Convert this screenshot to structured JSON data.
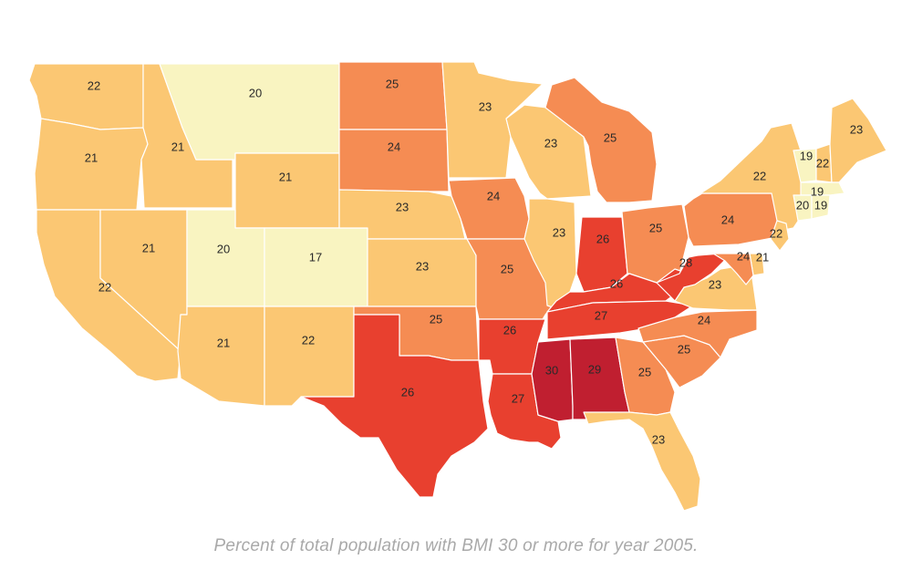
{
  "caption": "Percent of total population with BMI 30 or more for year 2005.",
  "colors": {
    "17": "#f9f4c1",
    "19": "#f9f4c1",
    "20": "#f9f4c1",
    "21": "#fbc773",
    "22": "#fbc773",
    "23": "#fbc773",
    "24": "#f58c53",
    "25": "#f58c53",
    "26": "#e8402f",
    "27": "#e8402f",
    "28": "#e8402f",
    "29": "#c01f30",
    "30": "#c01f30",
    "border": "#ffffff"
  },
  "states": [
    {
      "id": "WA",
      "value": 22
    },
    {
      "id": "OR",
      "value": 21
    },
    {
      "id": "CA",
      "value": 22
    },
    {
      "id": "ID",
      "value": 21
    },
    {
      "id": "NV",
      "value": 21
    },
    {
      "id": "MT",
      "value": 20
    },
    {
      "id": "WY",
      "value": 21
    },
    {
      "id": "UT",
      "value": 20
    },
    {
      "id": "CO",
      "value": 17
    },
    {
      "id": "AZ",
      "value": 21
    },
    {
      "id": "NM",
      "value": 22
    },
    {
      "id": "ND",
      "value": 25
    },
    {
      "id": "SD",
      "value": 24
    },
    {
      "id": "NE",
      "value": 23
    },
    {
      "id": "KS",
      "value": 23
    },
    {
      "id": "OK",
      "value": 25
    },
    {
      "id": "TX",
      "value": 26
    },
    {
      "id": "MN",
      "value": 23
    },
    {
      "id": "IA",
      "value": 24
    },
    {
      "id": "MO",
      "value": 25
    },
    {
      "id": "AR",
      "value": 26
    },
    {
      "id": "LA",
      "value": 27
    },
    {
      "id": "WI",
      "value": 23
    },
    {
      "id": "IL",
      "value": 23
    },
    {
      "id": "MI",
      "value": 25
    },
    {
      "id": "IN",
      "value": 26
    },
    {
      "id": "OH",
      "value": 25
    },
    {
      "id": "KY",
      "value": 26
    },
    {
      "id": "TN",
      "value": 27
    },
    {
      "id": "MS",
      "value": 30
    },
    {
      "id": "AL",
      "value": 29
    },
    {
      "id": "GA",
      "value": 25
    },
    {
      "id": "FL",
      "value": 23
    },
    {
      "id": "SC",
      "value": 25
    },
    {
      "id": "NC",
      "value": 24
    },
    {
      "id": "VA",
      "value": 23
    },
    {
      "id": "WV",
      "value": 28
    },
    {
      "id": "PA",
      "value": 24
    },
    {
      "id": "NY",
      "value": 22
    },
    {
      "id": "VT",
      "value": 19
    },
    {
      "id": "NH",
      "value": 22
    },
    {
      "id": "ME",
      "value": 23
    },
    {
      "id": "MA",
      "value": 19
    },
    {
      "id": "CT",
      "value": 20
    },
    {
      "id": "RI",
      "value": 19
    },
    {
      "id": "NJ",
      "value": 22
    },
    {
      "id": "DE",
      "value": 21
    },
    {
      "id": "MD",
      "value": 24
    }
  ]
}
